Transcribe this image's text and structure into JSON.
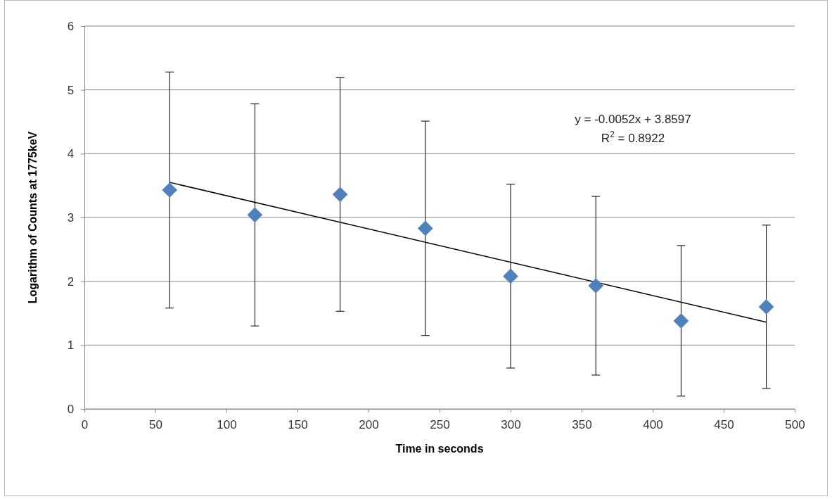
{
  "chart_data": {
    "type": "scatter",
    "xlabel": "Time in seconds",
    "ylabel": "Logarithm of Counts at 1775keV",
    "xlim": [
      0,
      500
    ],
    "xticks": [
      0,
      50,
      100,
      150,
      200,
      250,
      300,
      350,
      400,
      450,
      500
    ],
    "ylim": [
      0,
      6
    ],
    "yticks": [
      0,
      1,
      2,
      3,
      4,
      5,
      6
    ],
    "grid": "y",
    "marker": "diamond",
    "series": [
      {
        "color": "#4f81bd",
        "x": [
          60,
          120,
          180,
          240,
          300,
          360,
          420,
          480
        ],
        "values": [
          3.43,
          3.04,
          3.36,
          2.83,
          2.08,
          1.93,
          1.38,
          1.6
        ],
        "errors": [
          1.85,
          1.74,
          1.83,
          1.68,
          1.44,
          1.4,
          1.18,
          1.28
        ]
      },
      {
        "type": "line",
        "color": "#000000",
        "x": [
          60,
          480
        ],
        "values": [
          3.55,
          1.36
        ],
        "marker": "none"
      }
    ],
    "annotations": [
      "y = -0.0052x + 3.8597",
      "R$^{2}$ = 0.8922"
    ]
  }
}
